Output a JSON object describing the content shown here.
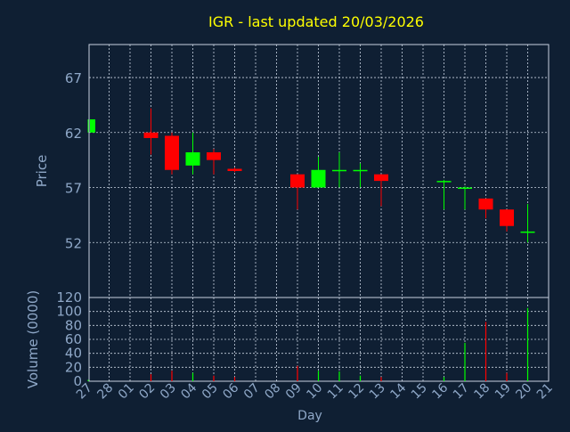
{
  "colors": {
    "background": "#0f1f33",
    "plot_frame": "#c8d2e0",
    "grid": "#c8d2e0",
    "title": "#ffff00",
    "axis_text": "#8fa8c8",
    "up": "#00ff00",
    "down": "#ff0000"
  },
  "chart_data": [
    {
      "type": "candlestick",
      "title": "IGR - last updated 20/03/2026",
      "ylabel": "Price",
      "xlabel": "",
      "ylim": [
        47,
        70
      ],
      "yticks": [
        52,
        57,
        62,
        67
      ],
      "grid": true,
      "x": [
        "27",
        "28",
        "01",
        "02",
        "03",
        "04",
        "05",
        "06",
        "07",
        "08",
        "09",
        "10",
        "11",
        "12",
        "13",
        "14",
        "15",
        "16",
        "17",
        "18",
        "19",
        "20",
        "21"
      ],
      "candles": [
        {
          "day": "27",
          "open": 62.0,
          "high": 63.2,
          "low": 62.0,
          "close": 63.2
        },
        {
          "day": "02",
          "open": 62.0,
          "high": 64.2,
          "low": 60.0,
          "close": 61.5
        },
        {
          "day": "03",
          "open": 61.7,
          "high": 62.0,
          "low": 58.2,
          "close": 58.6
        },
        {
          "day": "04",
          "open": 59.0,
          "high": 62.0,
          "low": 58.2,
          "close": 60.2
        },
        {
          "day": "05",
          "open": 60.2,
          "high": 60.5,
          "low": 58.2,
          "close": 59.5
        },
        {
          "day": "06",
          "open": 58.7,
          "high": 58.8,
          "low": 58.4,
          "close": 58.5
        },
        {
          "day": "09",
          "open": 58.2,
          "high": 58.2,
          "low": 55.0,
          "close": 57.0
        },
        {
          "day": "10",
          "open": 57.0,
          "high": 59.8,
          "low": 57.0,
          "close": 58.6
        },
        {
          "day": "11",
          "open": 58.5,
          "high": 60.2,
          "low": 57.0,
          "close": 58.6
        },
        {
          "day": "12",
          "open": 58.5,
          "high": 59.2,
          "low": 57.0,
          "close": 58.6
        },
        {
          "day": "13",
          "open": 58.2,
          "high": 58.2,
          "low": 55.3,
          "close": 57.6
        },
        {
          "day": "16",
          "open": 57.5,
          "high": 57.7,
          "low": 55.0,
          "close": 57.6
        },
        {
          "day": "17",
          "open": 57.0,
          "high": 57.1,
          "low": 55.0,
          "close": 57.0
        },
        {
          "day": "18",
          "open": 56.0,
          "high": 56.0,
          "low": 54.2,
          "close": 55.0
        },
        {
          "day": "19",
          "open": 55.0,
          "high": 55.0,
          "low": 53.0,
          "close": 53.5
        },
        {
          "day": "20",
          "open": 53.0,
          "high": 55.5,
          "low": 52.0,
          "close": 53.0
        }
      ]
    },
    {
      "type": "bar",
      "ylabel": "Volume (0000)",
      "xlabel": "Day",
      "ylim": [
        0,
        120
      ],
      "yticks": [
        0,
        20,
        40,
        60,
        80,
        100,
        120
      ],
      "grid": true,
      "x": [
        "27",
        "28",
        "01",
        "02",
        "03",
        "04",
        "05",
        "06",
        "07",
        "08",
        "09",
        "10",
        "11",
        "12",
        "13",
        "14",
        "15",
        "16",
        "17",
        "18",
        "19",
        "20",
        "21"
      ],
      "bars": [
        {
          "day": "27",
          "value": 2,
          "direction": "up"
        },
        {
          "day": "02",
          "value": 10,
          "direction": "down"
        },
        {
          "day": "03",
          "value": 15,
          "direction": "down"
        },
        {
          "day": "04",
          "value": 12,
          "direction": "up"
        },
        {
          "day": "05",
          "value": 8,
          "direction": "down"
        },
        {
          "day": "06",
          "value": 6,
          "direction": "down"
        },
        {
          "day": "09",
          "value": 22,
          "direction": "down"
        },
        {
          "day": "10",
          "value": 15,
          "direction": "up"
        },
        {
          "day": "11",
          "value": 14,
          "direction": "up"
        },
        {
          "day": "12",
          "value": 8,
          "direction": "up"
        },
        {
          "day": "13",
          "value": 6,
          "direction": "down"
        },
        {
          "day": "16",
          "value": 6,
          "direction": "up"
        },
        {
          "day": "17",
          "value": 55,
          "direction": "up"
        },
        {
          "day": "18",
          "value": 85,
          "direction": "down"
        },
        {
          "day": "19",
          "value": 12,
          "direction": "down"
        },
        {
          "day": "20",
          "value": 105,
          "direction": "up"
        }
      ]
    }
  ]
}
